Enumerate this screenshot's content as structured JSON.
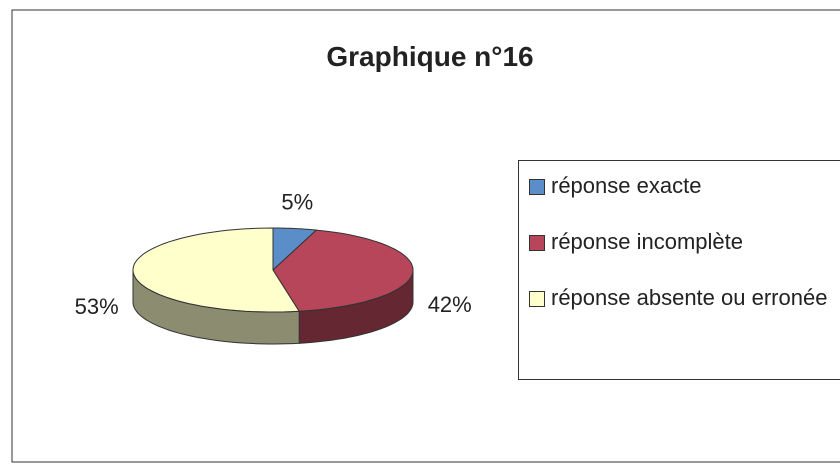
{
  "chart_data": {
    "type": "pie",
    "title": "Graphique n°16",
    "categories": [
      "réponse exacte",
      "réponse incomplète",
      "réponse absente ou erronée"
    ],
    "values": [
      5,
      42,
      53
    ],
    "value_labels": [
      "5%",
      "42%",
      "53%"
    ],
    "colors": [
      "#5b8ec8",
      "#b8465a",
      "#ffffcc"
    ],
    "legend": "right"
  }
}
